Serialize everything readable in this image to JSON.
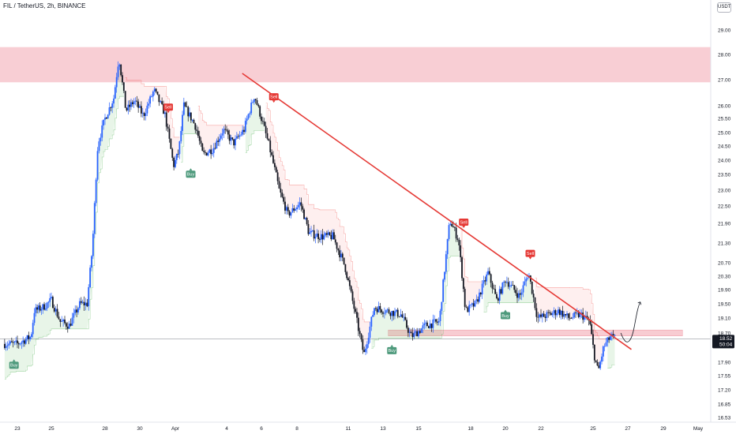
{
  "title": "FIL / TetherUS, 2h, BINANCE",
  "unit": "USDT",
  "colors": {
    "bull": "#2962ff",
    "bear": "#131722",
    "trend": "#e53935",
    "zone": "#f7c6cd",
    "buy": "#4e9a7c",
    "sell": "#e53935"
  },
  "chart_data": {
    "type": "candlestick",
    "symbol": "FIL / TetherUS",
    "timeframe": "2h",
    "exchange": "BINANCE",
    "y_ticks": [
      29.0,
      28.0,
      27.0,
      26.0,
      25.5,
      25.0,
      24.5,
      24.0,
      23.5,
      23.0,
      22.5,
      21.9,
      21.3,
      20.7,
      20.3,
      19.9,
      19.5,
      19.1,
      18.7,
      17.9,
      17.55,
      17.2,
      16.85,
      16.53
    ],
    "x_ticks": [
      {
        "label": "23",
        "day": 0
      },
      {
        "label": "25",
        "day": 2
      },
      {
        "label": "28",
        "day": 5
      },
      {
        "label": "30",
        "day": 7
      },
      {
        "label": "Apr",
        "day": 9
      },
      {
        "label": "4",
        "day": 12
      },
      {
        "label": "6",
        "day": 14
      },
      {
        "label": "8",
        "day": 16
      },
      {
        "label": "11",
        "day": 19
      },
      {
        "label": "13",
        "day": 21
      },
      {
        "label": "15",
        "day": 23
      },
      {
        "label": "18",
        "day": 26
      },
      {
        "label": "20",
        "day": 28
      },
      {
        "label": "22",
        "day": 30
      },
      {
        "label": "25",
        "day": 33
      },
      {
        "label": "27",
        "day": 35
      },
      {
        "label": "29",
        "day": 37
      },
      {
        "label": "May",
        "day": 39
      }
    ],
    "close_path": [
      [
        0,
        18.4
      ],
      [
        0.8,
        18.6
      ],
      [
        1.0,
        19.3
      ],
      [
        1.5,
        19.4
      ],
      [
        2.0,
        19.6
      ],
      [
        2.5,
        19.0
      ],
      [
        3.0,
        18.9
      ],
      [
        3.6,
        19.5
      ],
      [
        4.0,
        19.5
      ],
      [
        4.3,
        21.2
      ],
      [
        4.6,
        24.6
      ],
      [
        5.0,
        25.5
      ],
      [
        5.5,
        26.3
      ],
      [
        5.8,
        27.9
      ],
      [
        6.2,
        25.8
      ],
      [
        6.7,
        26.2
      ],
      [
        7.2,
        25.6
      ],
      [
        7.8,
        26.6
      ],
      [
        8.4,
        25.7
      ],
      [
        8.9,
        23.8
      ],
      [
        9.2,
        24.3
      ],
      [
        9.5,
        26.0
      ],
      [
        10.2,
        25.2
      ],
      [
        10.6,
        24.2
      ],
      [
        11.2,
        24.4
      ],
      [
        11.8,
        25.1
      ],
      [
        12.4,
        24.6
      ],
      [
        13.0,
        25.1
      ],
      [
        13.6,
        26.4
      ],
      [
        14.4,
        24.6
      ],
      [
        15.0,
        23.0
      ],
      [
        15.5,
        22.2
      ],
      [
        16.2,
        22.6
      ],
      [
        16.7,
        21.6
      ],
      [
        17.4,
        21.5
      ],
      [
        18.1,
        21.5
      ],
      [
        18.8,
        20.6
      ],
      [
        19.5,
        19.0
      ],
      [
        19.9,
        18.1
      ],
      [
        20.5,
        19.4
      ],
      [
        21.2,
        19.3
      ],
      [
        22.0,
        19.2
      ],
      [
        22.6,
        18.6
      ],
      [
        23.4,
        18.9
      ],
      [
        24.2,
        19.0
      ],
      [
        24.5,
        20.5
      ],
      [
        24.8,
        22.0
      ],
      [
        25.3,
        21.4
      ],
      [
        25.7,
        19.3
      ],
      [
        26.3,
        19.5
      ],
      [
        27.0,
        20.4
      ],
      [
        27.5,
        19.6
      ],
      [
        28.0,
        20.2
      ],
      [
        28.8,
        19.7
      ],
      [
        29.3,
        20.4
      ],
      [
        29.8,
        19.1
      ],
      [
        30.5,
        19.2
      ],
      [
        31.0,
        19.3
      ],
      [
        31.6,
        19.1
      ],
      [
        32.3,
        19.2
      ],
      [
        32.8,
        19.0
      ],
      [
        33.1,
        18.0
      ],
      [
        33.3,
        17.65
      ],
      [
        33.6,
        18.3
      ],
      [
        34.0,
        18.6
      ],
      [
        34.3,
        18.55
      ]
    ],
    "resistance_zone": {
      "low": 26.9,
      "high": 28.3
    },
    "support_zone": {
      "low": 18.62,
      "high": 18.78
    },
    "current_price": {
      "value": 18.52,
      "label": "18.52",
      "countdown": "50:04"
    },
    "trendline": {
      "from": {
        "day": 12.9,
        "price": 27.25
      },
      "to": {
        "day": 35.2,
        "price": 18.25
      }
    },
    "projection": {
      "from": {
        "day": 34.6,
        "price": 18.7
      },
      "to": {
        "day": 35.7,
        "price": 19.55
      }
    },
    "signals": [
      {
        "type": "buy",
        "label": "Buy",
        "day": -0.2,
        "price": 17.85
      },
      {
        "type": "sell",
        "label": "Sell",
        "day": 8.6,
        "price": 25.9
      },
      {
        "type": "buy",
        "label": "Buy",
        "day": 9.9,
        "price": 23.55
      },
      {
        "type": "sell",
        "label": "Sell",
        "day": 14.7,
        "price": 26.3
      },
      {
        "type": "buy",
        "label": "Buy",
        "day": 21.5,
        "price": 18.25
      },
      {
        "type": "sell",
        "label": "Sell",
        "day": 25.6,
        "price": 21.9
      },
      {
        "type": "buy",
        "label": "Buy",
        "day": 28.0,
        "price": 19.2
      },
      {
        "type": "sell",
        "label": "Sell",
        "day": 29.4,
        "price": 20.95
      }
    ]
  }
}
